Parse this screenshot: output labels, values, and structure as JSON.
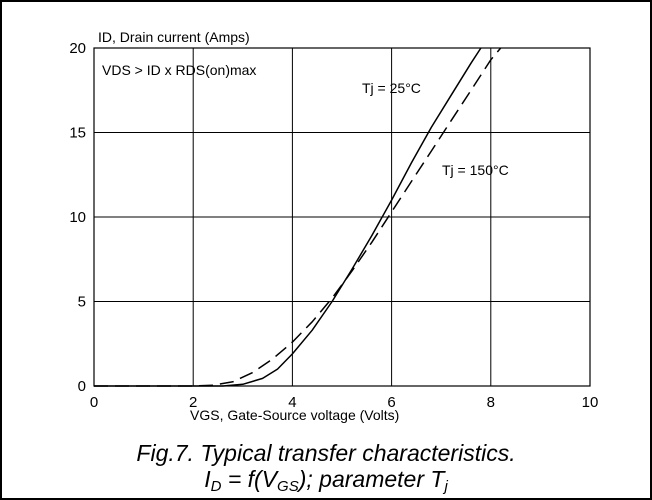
{
  "chart_data": {
    "type": "line",
    "ylabel": "ID, Drain current (Amps)",
    "xlabel": "VGS, Gate-Source voltage (Volts)",
    "xlim": [
      0,
      10
    ],
    "ylim": [
      0,
      20
    ],
    "xticks": [
      0,
      2,
      4,
      6,
      8,
      10
    ],
    "yticks": [
      0,
      5,
      10,
      15,
      20
    ],
    "grid": true,
    "condition_note": "VDS > ID x RDS(on)max",
    "series": [
      {
        "name": "Tj = 25°C",
        "style": "solid",
        "points": [
          [
            0,
            0
          ],
          [
            2,
            0
          ],
          [
            2.6,
            0
          ],
          [
            3.0,
            0.1
          ],
          [
            3.4,
            0.45
          ],
          [
            3.7,
            1.0
          ],
          [
            4.0,
            1.9
          ],
          [
            4.4,
            3.3
          ],
          [
            4.8,
            5.0
          ],
          [
            5.2,
            6.9
          ],
          [
            5.6,
            8.9
          ],
          [
            6.0,
            11.0
          ],
          [
            6.4,
            13.2
          ],
          [
            6.8,
            15.3
          ],
          [
            7.2,
            17.2
          ],
          [
            7.6,
            19.1
          ],
          [
            7.8,
            20.0
          ]
        ]
      },
      {
        "name": "Tj = 150°C",
        "style": "dashed",
        "points": [
          [
            0,
            0
          ],
          [
            2,
            0
          ],
          [
            2.4,
            0.05
          ],
          [
            2.8,
            0.25
          ],
          [
            3.2,
            0.8
          ],
          [
            3.6,
            1.6
          ],
          [
            4.0,
            2.6
          ],
          [
            4.4,
            3.8
          ],
          [
            4.8,
            5.2
          ],
          [
            5.2,
            6.8
          ],
          [
            5.6,
            8.5
          ],
          [
            6.0,
            10.3
          ],
          [
            6.4,
            12.1
          ],
          [
            6.8,
            13.9
          ],
          [
            7.2,
            15.7
          ],
          [
            7.6,
            17.5
          ],
          [
            8.0,
            19.3
          ],
          [
            8.2,
            20.0
          ]
        ]
      }
    ]
  },
  "caption": {
    "line1": "Fig.7.  Typical transfer characteristics.",
    "line2_a": "I",
    "line2_a_sub": "D",
    "line2_b": " = f(V",
    "line2_b_sub": "GS",
    "line2_c": "); parameter T",
    "line2_c_sub": "j"
  }
}
